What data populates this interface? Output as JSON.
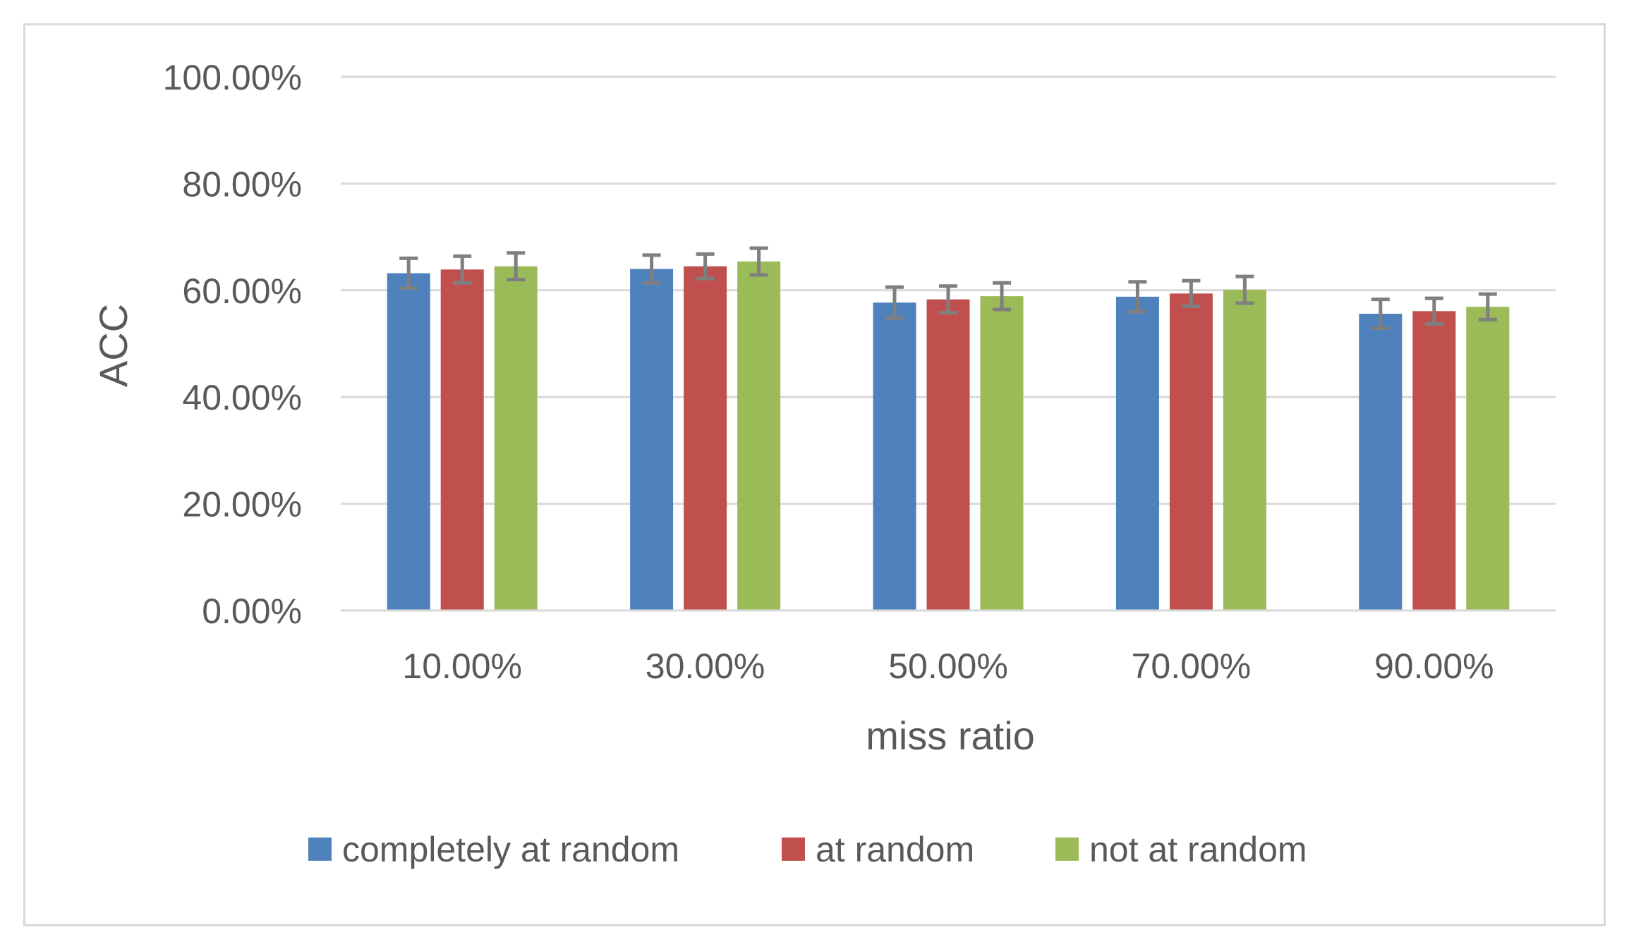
{
  "chart_data": {
    "type": "bar",
    "title": "",
    "xlabel": "miss ratio",
    "ylabel": "ACC",
    "categories": [
      "10.00%",
      "30.00%",
      "50.00%",
      "70.00%",
      "90.00%"
    ],
    "series": [
      {
        "name": "completely at random",
        "color": "#4f81bd",
        "values": [
          0.632,
          0.64,
          0.577,
          0.588,
          0.556
        ],
        "error": [
          0.028,
          0.026,
          0.029,
          0.028,
          0.027
        ]
      },
      {
        "name": "at random",
        "color": "#c0504d",
        "values": [
          0.639,
          0.645,
          0.583,
          0.594,
          0.561
        ],
        "error": [
          0.025,
          0.023,
          0.025,
          0.024,
          0.024
        ]
      },
      {
        "name": "not at random",
        "color": "#9bbb59",
        "values": [
          0.645,
          0.654,
          0.589,
          0.601,
          0.569
        ],
        "error": [
          0.025,
          0.025,
          0.025,
          0.025,
          0.024
        ]
      }
    ],
    "ylim": [
      0,
      1.0
    ],
    "yticks": [
      "0.00%",
      "20.00%",
      "40.00%",
      "60.00%",
      "80.00%",
      "100.00%"
    ],
    "ytick_values": [
      0,
      0.2,
      0.4,
      0.6,
      0.8,
      1.0
    ],
    "grid": true,
    "legend_position": "bottom",
    "gridline_color": "#d9d9d9",
    "error_bar_color": "#7f7f7f"
  }
}
